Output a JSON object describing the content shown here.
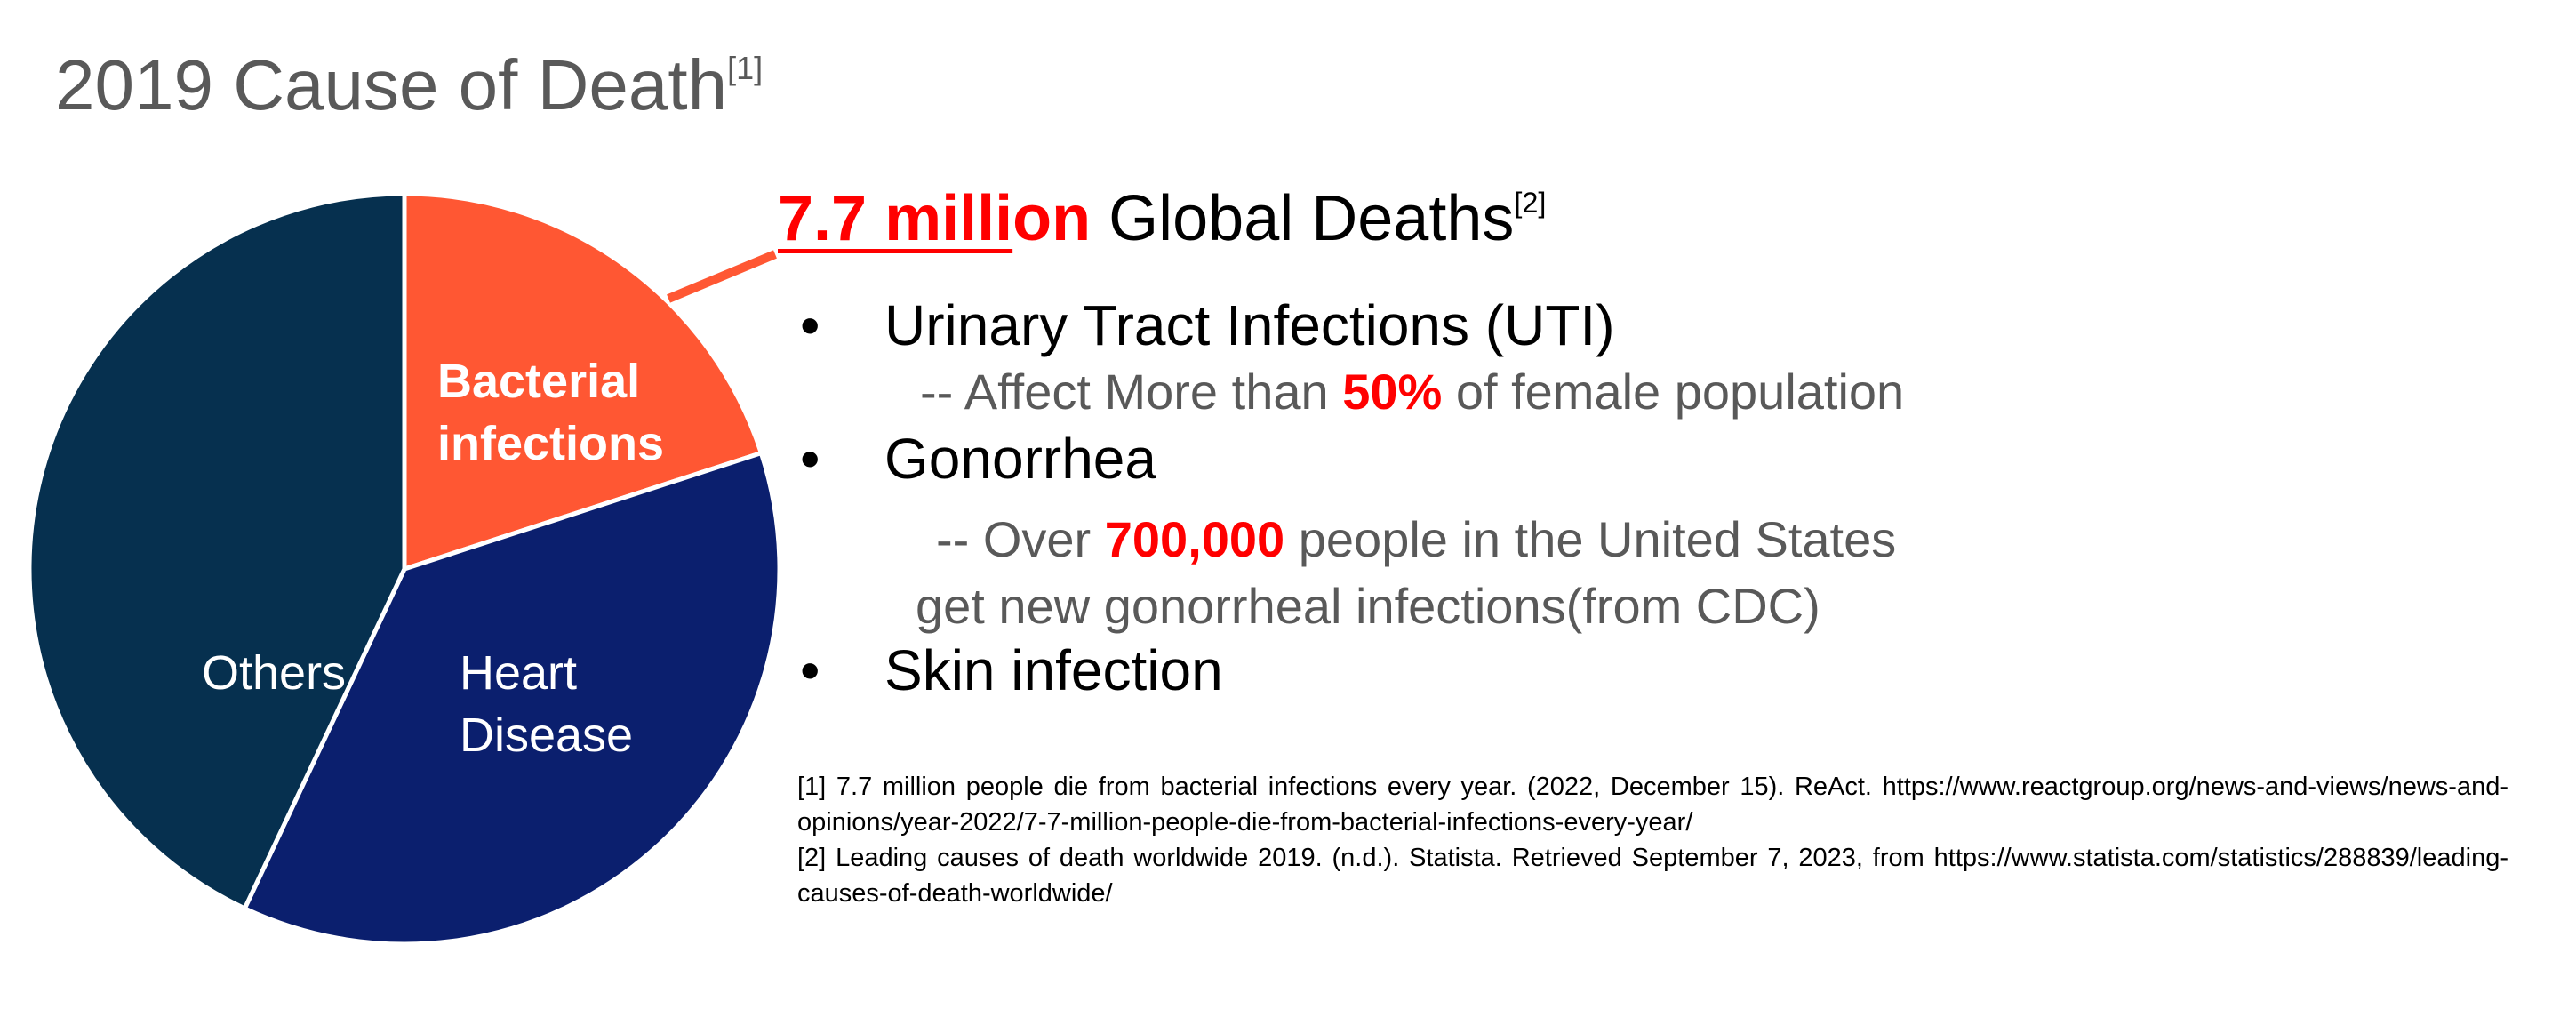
{
  "title": {
    "text": "2019 Cause of Death",
    "ref": "[1]"
  },
  "chart_data": {
    "type": "pie",
    "title": "2019 Cause of Death",
    "slices": [
      {
        "label": [
          "Bacterial",
          "infections"
        ],
        "value": 20,
        "color": "#ff5733",
        "bold": true
      },
      {
        "label": [
          "Heart",
          "Disease"
        ],
        "value": 37,
        "color": "#0b1f6e",
        "bold": false
      },
      {
        "label": [
          "Others"
        ],
        "value": 43,
        "color": "#06304f",
        "bold": false
      }
    ]
  },
  "headline": {
    "highlight_a": "7.7 milli",
    "highlight_b": "on",
    "rest": " Global Deaths",
    "ref": "[2]"
  },
  "bullets": [
    {
      "glyph": "•",
      "text": "Urinary Tract Infections (UTI)",
      "detail": {
        "pre": "-- Affect More than ",
        "highlight": "50%",
        "post": " of female population"
      }
    },
    {
      "glyph": "•",
      "text": "Gonorrhea",
      "detail": {
        "pre": "-- Over ",
        "highlight": "700,000",
        "post": " people in the United States",
        "line2": "get new gonorrheal infections(from CDC)"
      }
    },
    {
      "glyph": "•",
      "text": "Skin infection"
    }
  ],
  "references": [
    "[1] 7.7 million people die from bacterial infections every year. (2022, December 15). ReAct. https://www.reactgroup.org/news-and-views/news-and-opinions/year-2022/7-7-million-people-die-from-bacterial-infections-every-year/",
    "[2] Leading causes of death worldwide 2019. (n.d.). Statista. Retrieved September 7, 2023, from https://www.statista.com/statistics/288839/leading-causes-of-death-worldwide/"
  ],
  "colors": {
    "accent_red": "#ff0000",
    "callout": "#ff5733",
    "title_gray": "#595959"
  }
}
